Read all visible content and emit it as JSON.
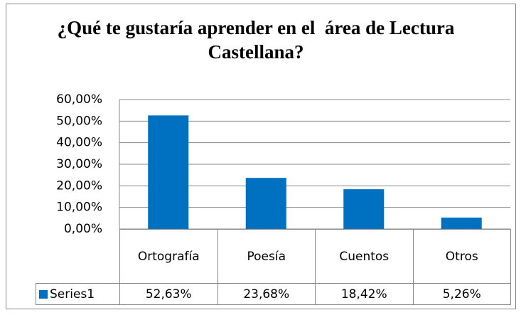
{
  "chart_data": {
    "type": "bar",
    "title": "¿Qué te gustaría aprender en el  área de Lectura Castellana?",
    "categories": [
      "Ortografía",
      "Poesía",
      "Cuentos",
      "Otros"
    ],
    "series": [
      {
        "name": "Series1",
        "color": "#0070c0",
        "values": [
          52.63,
          23.68,
          18.42,
          5.26
        ],
        "value_labels": [
          "52,63%",
          "23,68%",
          "18,42%",
          "5,26%"
        ]
      }
    ],
    "ylim": [
      0,
      60
    ],
    "yticks": [
      {
        "value": 0,
        "label": "0,00%"
      },
      {
        "value": 10,
        "label": "10,00%"
      },
      {
        "value": 20,
        "label": "20,00%"
      },
      {
        "value": 30,
        "label": "30,00%"
      },
      {
        "value": 40,
        "label": "40,00%"
      },
      {
        "value": 50,
        "label": "50,00%"
      },
      {
        "value": 60,
        "label": "60,00%"
      }
    ],
    "grid": true
  }
}
